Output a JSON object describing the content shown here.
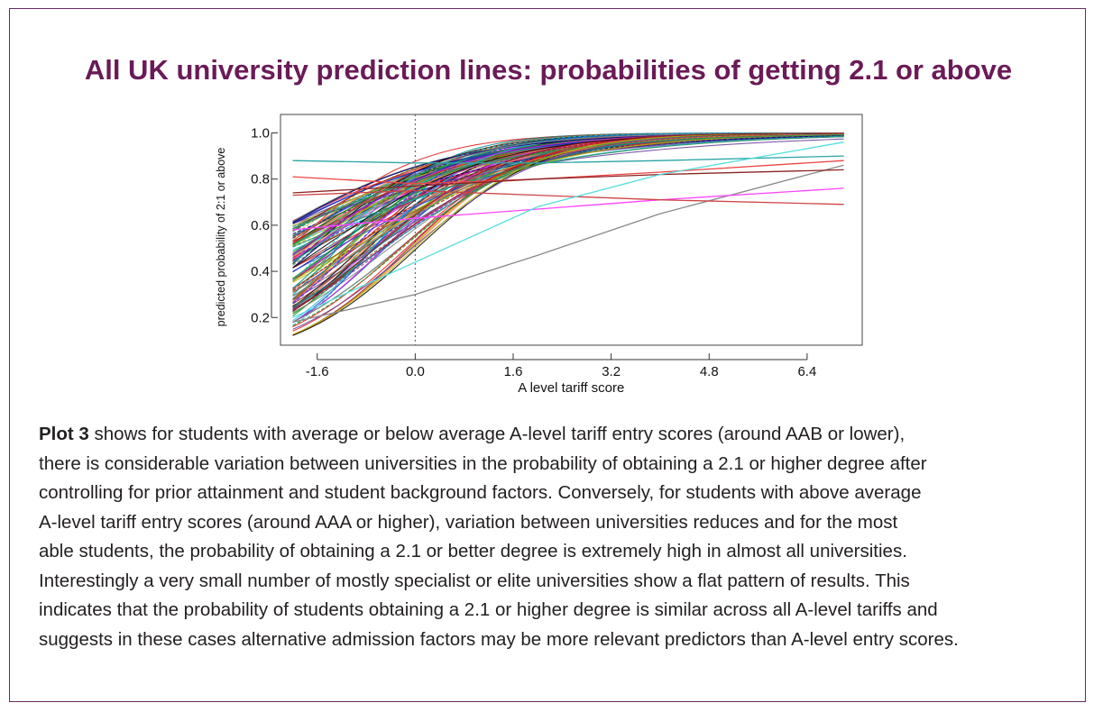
{
  "title": "All UK university prediction lines: probabilities of getting 2.1 or above",
  "chart_data": {
    "type": "line",
    "title": "",
    "xlabel": "A level tariff score",
    "ylabel": "predicted probability of 2:1 or above",
    "xlim": [
      -2.2,
      7.3
    ],
    "ylim": [
      0.08,
      1.08
    ],
    "x_ticks": [
      "-1.6",
      "0.0",
      "1.6",
      "3.2",
      "4.8",
      "6.4"
    ],
    "y_ticks": [
      "0.2",
      "0.4",
      "0.6",
      "0.8",
      "1.0"
    ],
    "reference_line_x": 0.0,
    "grid": false,
    "series_note_count": 130,
    "series": [
      {
        "color": "#888888",
        "x": [
          -2.0,
          0.0,
          2.0,
          4.0,
          7.0
        ],
        "y": [
          0.18,
          0.3,
          0.47,
          0.65,
          0.86
        ]
      },
      {
        "color": "#ff44ff",
        "x": [
          -2.0,
          0.0,
          2.0,
          4.0,
          7.0
        ],
        "y": [
          0.58,
          0.63,
          0.67,
          0.71,
          0.76
        ]
      },
      {
        "color": "#cc4444",
        "x": [
          -2.0,
          0.0,
          2.0,
          4.0,
          7.0
        ],
        "y": [
          0.73,
          0.75,
          0.73,
          0.71,
          0.69
        ]
      },
      {
        "color": "#2aa5a5",
        "x": [
          -2.0,
          0.0,
          2.0,
          4.0,
          7.0
        ],
        "y": [
          0.88,
          0.87,
          0.87,
          0.88,
          0.9
        ]
      },
      {
        "color": "#ee4444",
        "x": [
          -2.0,
          0.0,
          2.0,
          4.0,
          7.0
        ],
        "y": [
          0.81,
          0.78,
          0.8,
          0.83,
          0.88
        ]
      },
      {
        "color": "#8b2323",
        "x": [
          -2.0,
          0.0,
          2.0,
          4.0,
          7.0
        ],
        "y": [
          0.74,
          0.77,
          0.8,
          0.82,
          0.84
        ]
      },
      {
        "color": "#55dddd",
        "x": [
          -2.0,
          0.0,
          2.0,
          4.0,
          7.0
        ],
        "y": [
          0.2,
          0.44,
          0.68,
          0.82,
          0.96
        ]
      }
    ],
    "bundle_description": "Dense bundle of logistic prediction curves starting between 0.1 and 0.65 at x=-2 and converging to about 0.95-1.0 by x=3"
  },
  "caption": {
    "lead": "Plot 3",
    "lines": [
      " shows for students with average or below average A-level tariff entry scores (around AAB or lower),",
      "there is considerable variation between universities in the probability of obtaining a 2.1 or higher degree after",
      "controlling for prior attainment and student background factors. Conversely, for students with above average",
      "A-level tariff entry scores (around AAA or higher), variation between universities reduces and for the most",
      "able students, the probability of obtaining a 2.1 or better degree is extremely high in almost all universities.",
      "Interestingly a very small number of mostly specialist or elite universities show a flat pattern of results. This",
      "indicates that the probability of students obtaining a 2.1 or higher degree is similar across all A-level tariffs and",
      "suggests in these cases alternative admission factors may be more relevant predictors than A-level entry scores."
    ]
  },
  "colors": {
    "frame": "#6b2a5e",
    "title": "#6a1b57",
    "text": "#231f20",
    "palette": [
      "#000000",
      "#e41a1c",
      "#1a9a1a",
      "#1f3fd4",
      "#17becf",
      "#d62bd6",
      "#b8b800",
      "#7f7f7f",
      "#8b1a1a",
      "#2e8b57",
      "#000080",
      "#ff7f50",
      "#6a3d9a",
      "#008b8b",
      "#a0522d"
    ]
  }
}
